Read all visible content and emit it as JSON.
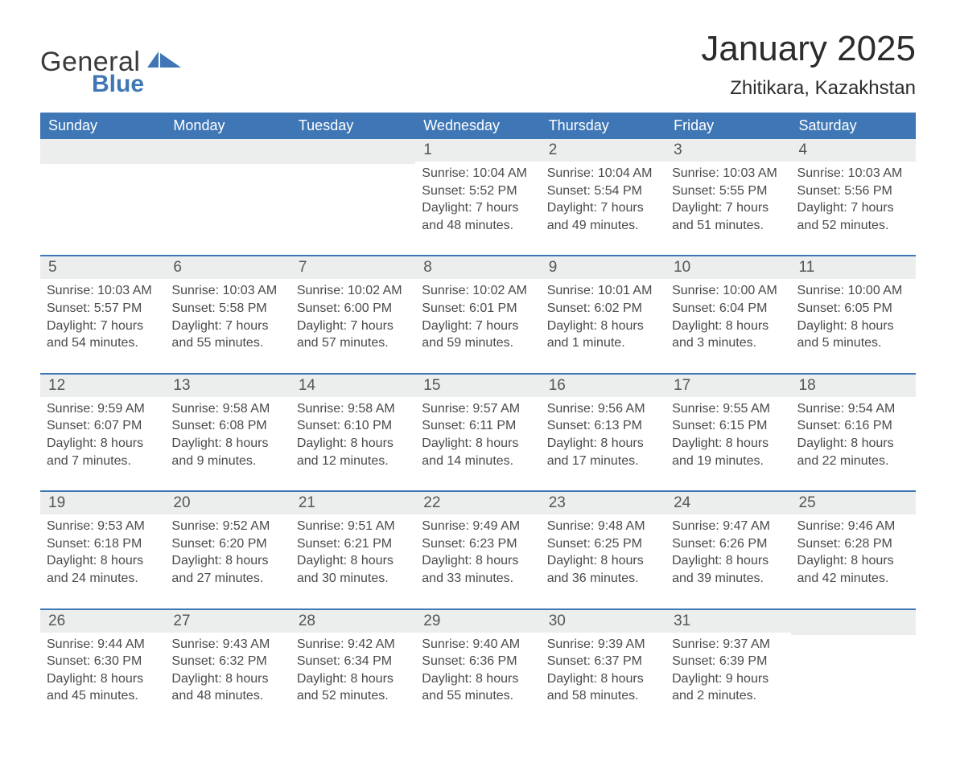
{
  "colors": {
    "accent": "#3f77b6",
    "row_band": "#eceded",
    "text": "#333333",
    "muted": "#4a4a4a",
    "bg": "#ffffff"
  },
  "logo": {
    "word1": "General",
    "word2": "Blue"
  },
  "header": {
    "title": "January 2025",
    "location": "Zhitikara, Kazakhstan"
  },
  "weekday_labels": [
    "Sunday",
    "Monday",
    "Tuesday",
    "Wednesday",
    "Thursday",
    "Friday",
    "Saturday"
  ],
  "weeks": [
    [
      null,
      null,
      null,
      {
        "n": "1",
        "sunrise": "Sunrise: 10:04 AM",
        "sunset": "Sunset: 5:52 PM",
        "d1": "Daylight: 7 hours",
        "d2": "and 48 minutes."
      },
      {
        "n": "2",
        "sunrise": "Sunrise: 10:04 AM",
        "sunset": "Sunset: 5:54 PM",
        "d1": "Daylight: 7 hours",
        "d2": "and 49 minutes."
      },
      {
        "n": "3",
        "sunrise": "Sunrise: 10:03 AM",
        "sunset": "Sunset: 5:55 PM",
        "d1": "Daylight: 7 hours",
        "d2": "and 51 minutes."
      },
      {
        "n": "4",
        "sunrise": "Sunrise: 10:03 AM",
        "sunset": "Sunset: 5:56 PM",
        "d1": "Daylight: 7 hours",
        "d2": "and 52 minutes."
      }
    ],
    [
      {
        "n": "5",
        "sunrise": "Sunrise: 10:03 AM",
        "sunset": "Sunset: 5:57 PM",
        "d1": "Daylight: 7 hours",
        "d2": "and 54 minutes."
      },
      {
        "n": "6",
        "sunrise": "Sunrise: 10:03 AM",
        "sunset": "Sunset: 5:58 PM",
        "d1": "Daylight: 7 hours",
        "d2": "and 55 minutes."
      },
      {
        "n": "7",
        "sunrise": "Sunrise: 10:02 AM",
        "sunset": "Sunset: 6:00 PM",
        "d1": "Daylight: 7 hours",
        "d2": "and 57 minutes."
      },
      {
        "n": "8",
        "sunrise": "Sunrise: 10:02 AM",
        "sunset": "Sunset: 6:01 PM",
        "d1": "Daylight: 7 hours",
        "d2": "and 59 minutes."
      },
      {
        "n": "9",
        "sunrise": "Sunrise: 10:01 AM",
        "sunset": "Sunset: 6:02 PM",
        "d1": "Daylight: 8 hours",
        "d2": "and 1 minute."
      },
      {
        "n": "10",
        "sunrise": "Sunrise: 10:00 AM",
        "sunset": "Sunset: 6:04 PM",
        "d1": "Daylight: 8 hours",
        "d2": "and 3 minutes."
      },
      {
        "n": "11",
        "sunrise": "Sunrise: 10:00 AM",
        "sunset": "Sunset: 6:05 PM",
        "d1": "Daylight: 8 hours",
        "d2": "and 5 minutes."
      }
    ],
    [
      {
        "n": "12",
        "sunrise": "Sunrise: 9:59 AM",
        "sunset": "Sunset: 6:07 PM",
        "d1": "Daylight: 8 hours",
        "d2": "and 7 minutes."
      },
      {
        "n": "13",
        "sunrise": "Sunrise: 9:58 AM",
        "sunset": "Sunset: 6:08 PM",
        "d1": "Daylight: 8 hours",
        "d2": "and 9 minutes."
      },
      {
        "n": "14",
        "sunrise": "Sunrise: 9:58 AM",
        "sunset": "Sunset: 6:10 PM",
        "d1": "Daylight: 8 hours",
        "d2": "and 12 minutes."
      },
      {
        "n": "15",
        "sunrise": "Sunrise: 9:57 AM",
        "sunset": "Sunset: 6:11 PM",
        "d1": "Daylight: 8 hours",
        "d2": "and 14 minutes."
      },
      {
        "n": "16",
        "sunrise": "Sunrise: 9:56 AM",
        "sunset": "Sunset: 6:13 PM",
        "d1": "Daylight: 8 hours",
        "d2": "and 17 minutes."
      },
      {
        "n": "17",
        "sunrise": "Sunrise: 9:55 AM",
        "sunset": "Sunset: 6:15 PM",
        "d1": "Daylight: 8 hours",
        "d2": "and 19 minutes."
      },
      {
        "n": "18",
        "sunrise": "Sunrise: 9:54 AM",
        "sunset": "Sunset: 6:16 PM",
        "d1": "Daylight: 8 hours",
        "d2": "and 22 minutes."
      }
    ],
    [
      {
        "n": "19",
        "sunrise": "Sunrise: 9:53 AM",
        "sunset": "Sunset: 6:18 PM",
        "d1": "Daylight: 8 hours",
        "d2": "and 24 minutes."
      },
      {
        "n": "20",
        "sunrise": "Sunrise: 9:52 AM",
        "sunset": "Sunset: 6:20 PM",
        "d1": "Daylight: 8 hours",
        "d2": "and 27 minutes."
      },
      {
        "n": "21",
        "sunrise": "Sunrise: 9:51 AM",
        "sunset": "Sunset: 6:21 PM",
        "d1": "Daylight: 8 hours",
        "d2": "and 30 minutes."
      },
      {
        "n": "22",
        "sunrise": "Sunrise: 9:49 AM",
        "sunset": "Sunset: 6:23 PM",
        "d1": "Daylight: 8 hours",
        "d2": "and 33 minutes."
      },
      {
        "n": "23",
        "sunrise": "Sunrise: 9:48 AM",
        "sunset": "Sunset: 6:25 PM",
        "d1": "Daylight: 8 hours",
        "d2": "and 36 minutes."
      },
      {
        "n": "24",
        "sunrise": "Sunrise: 9:47 AM",
        "sunset": "Sunset: 6:26 PM",
        "d1": "Daylight: 8 hours",
        "d2": "and 39 minutes."
      },
      {
        "n": "25",
        "sunrise": "Sunrise: 9:46 AM",
        "sunset": "Sunset: 6:28 PM",
        "d1": "Daylight: 8 hours",
        "d2": "and 42 minutes."
      }
    ],
    [
      {
        "n": "26",
        "sunrise": "Sunrise: 9:44 AM",
        "sunset": "Sunset: 6:30 PM",
        "d1": "Daylight: 8 hours",
        "d2": "and 45 minutes."
      },
      {
        "n": "27",
        "sunrise": "Sunrise: 9:43 AM",
        "sunset": "Sunset: 6:32 PM",
        "d1": "Daylight: 8 hours",
        "d2": "and 48 minutes."
      },
      {
        "n": "28",
        "sunrise": "Sunrise: 9:42 AM",
        "sunset": "Sunset: 6:34 PM",
        "d1": "Daylight: 8 hours",
        "d2": "and 52 minutes."
      },
      {
        "n": "29",
        "sunrise": "Sunrise: 9:40 AM",
        "sunset": "Sunset: 6:36 PM",
        "d1": "Daylight: 8 hours",
        "d2": "and 55 minutes."
      },
      {
        "n": "30",
        "sunrise": "Sunrise: 9:39 AM",
        "sunset": "Sunset: 6:37 PM",
        "d1": "Daylight: 8 hours",
        "d2": "and 58 minutes."
      },
      {
        "n": "31",
        "sunrise": "Sunrise: 9:37 AM",
        "sunset": "Sunset: 6:39 PM",
        "d1": "Daylight: 9 hours",
        "d2": "and 2 minutes."
      },
      null
    ]
  ]
}
